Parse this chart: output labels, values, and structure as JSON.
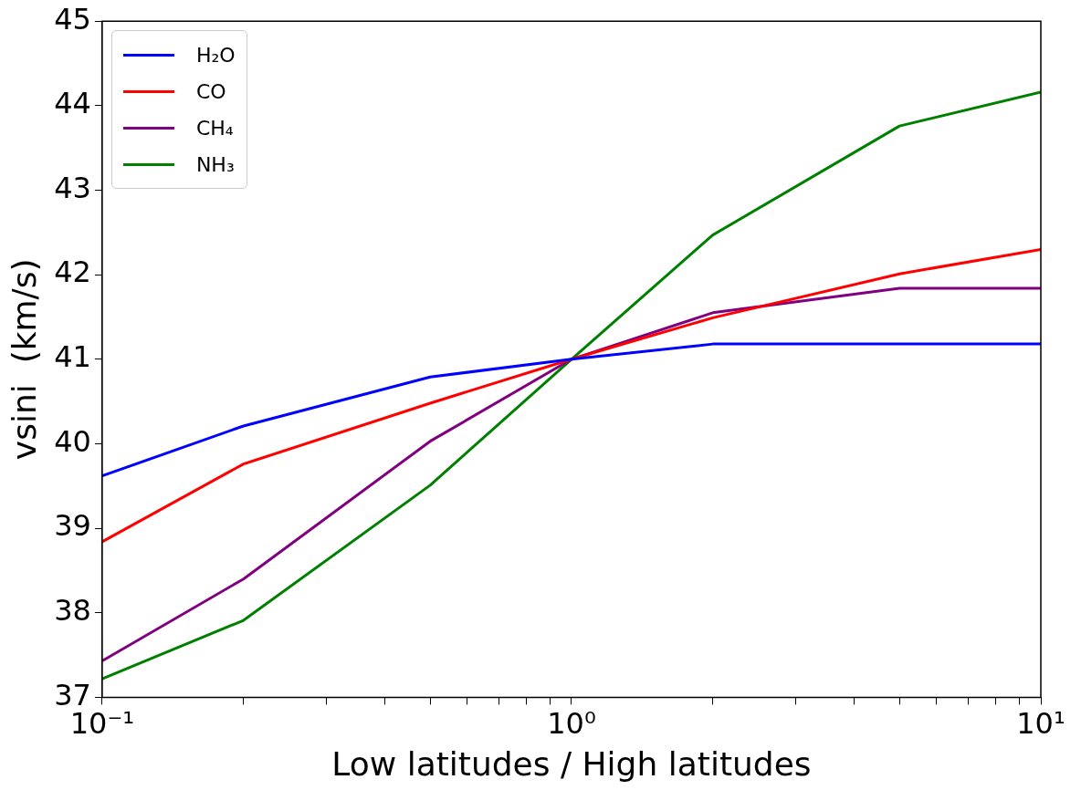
{
  "chart_data": {
    "type": "line",
    "xlabel": "Low latitudes / High latitudes",
    "ylabel": "vsini  (km/s)",
    "x": [
      0.1,
      0.2,
      0.5,
      1,
      2,
      5,
      10
    ],
    "series": [
      {
        "name": "H₂O",
        "color": "#0000ff",
        "values": [
          39.62,
          40.21,
          40.79,
          41.0,
          41.18,
          41.18,
          41.18
        ]
      },
      {
        "name": "CO",
        "color": "#ff0000",
        "values": [
          38.84,
          39.76,
          40.48,
          41.0,
          41.49,
          42.01,
          42.3
        ]
      },
      {
        "name": "CH₄",
        "color": "#800080",
        "values": [
          37.43,
          38.4,
          40.03,
          41.0,
          41.55,
          41.84,
          41.84
        ]
      },
      {
        "name": "NH₃",
        "color": "#008000",
        "values": [
          37.22,
          37.91,
          39.51,
          41.0,
          42.47,
          43.76,
          44.16
        ]
      }
    ],
    "log": "x",
    "xlim": [
      0.1,
      10
    ],
    "ylim": [
      37,
      45
    ],
    "xticks": [
      {
        "value": 0.1,
        "label": "10⁻¹"
      },
      {
        "value": 0.2,
        "label": null
      },
      {
        "value": 0.3,
        "label": null
      },
      {
        "value": 0.4,
        "label": null
      },
      {
        "value": 0.5,
        "label": null
      },
      {
        "value": 0.6,
        "label": null
      },
      {
        "value": 0.7,
        "label": null
      },
      {
        "value": 0.8,
        "label": null
      },
      {
        "value": 0.9,
        "label": null
      },
      {
        "value": 1,
        "label": "10⁰"
      },
      {
        "value": 2,
        "label": null
      },
      {
        "value": 3,
        "label": null
      },
      {
        "value": 4,
        "label": null
      },
      {
        "value": 5,
        "label": null
      },
      {
        "value": 6,
        "label": null
      },
      {
        "value": 7,
        "label": null
      },
      {
        "value": 8,
        "label": null
      },
      {
        "value": 9,
        "label": null
      },
      {
        "value": 10,
        "label": "10¹"
      }
    ],
    "yticks": [
      37,
      38,
      39,
      40,
      41,
      42,
      43,
      44,
      45
    ],
    "grid": false,
    "legend": "top left",
    "marker": "none",
    "line_style": "solid"
  }
}
